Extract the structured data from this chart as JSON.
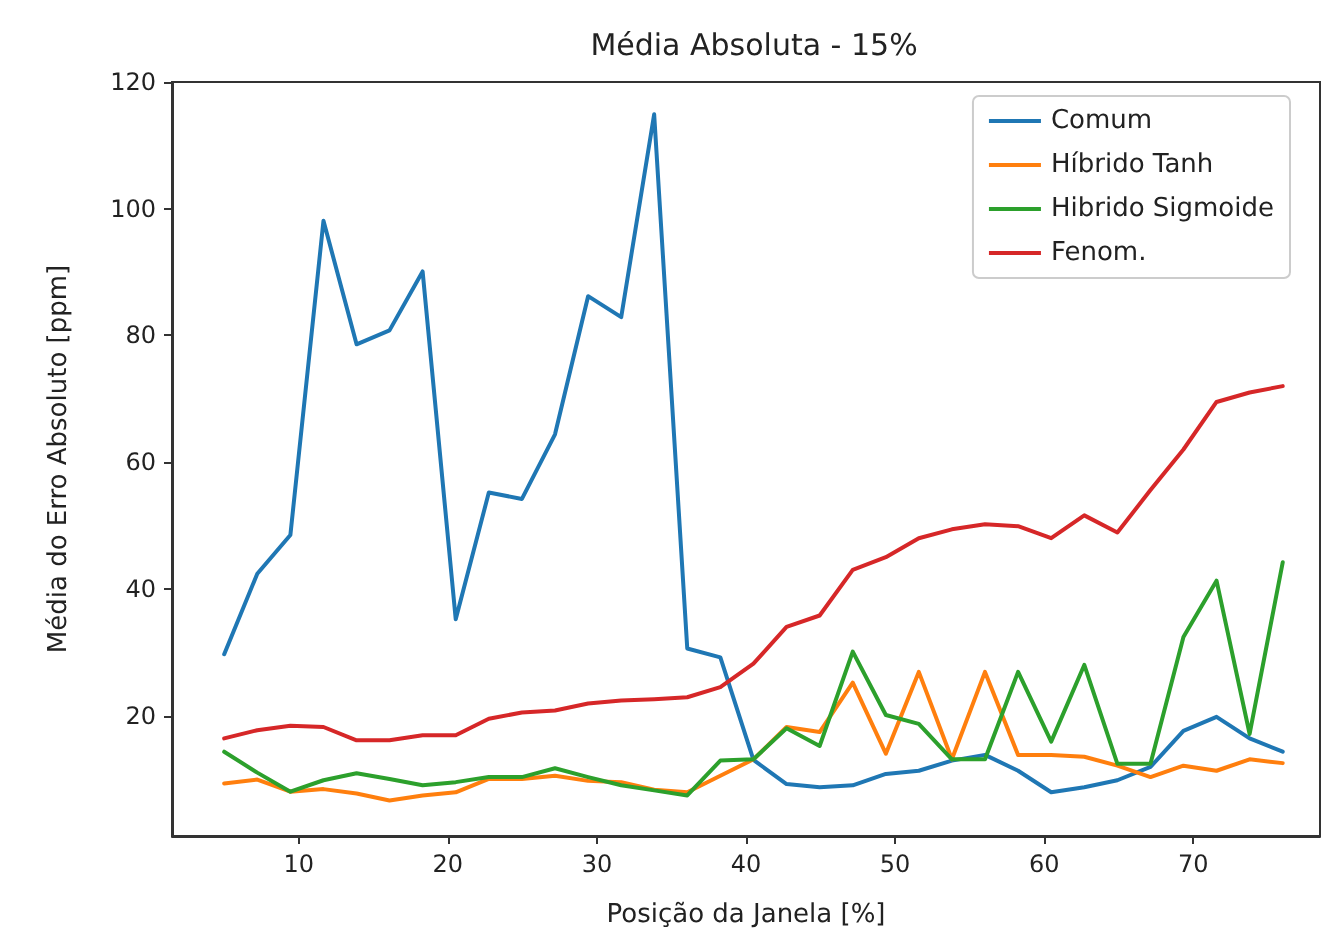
{
  "chart_data": {
    "type": "line",
    "title": "Média Absoluta - 15%",
    "xlabel": "Posição da Janela [%]",
    "ylabel": "Média do Erro Absoluto [ppm]",
    "x": [
      5,
      7.22,
      9.44,
      11.66,
      13.88,
      16.09,
      18.31,
      20.53,
      22.75,
      24.97,
      27.19,
      29.41,
      31.63,
      33.84,
      36.06,
      38.28,
      40.5,
      42.72,
      44.94,
      47.16,
      49.38,
      51.59,
      53.81,
      56.03,
      58.25,
      60.47,
      62.69,
      64.91,
      67.13,
      69.34,
      71.56,
      73.78,
      76
    ],
    "xlim": [
      1.5,
      78.5
    ],
    "xticks": [
      10,
      20,
      30,
      40,
      50,
      60,
      70
    ],
    "ylim": [
      1,
      120
    ],
    "yticks": [
      20,
      40,
      60,
      80,
      100,
      120
    ],
    "legend": "top right",
    "grid": false,
    "line_style": "solid",
    "marker": "none",
    "series": [
      {
        "name": "Comum",
        "color": "#1f77b4",
        "values": [
          29.7,
          42.4,
          48.5,
          98.1,
          78.6,
          80.8,
          90.1,
          35.2,
          55.2,
          54.2,
          64.4,
          86.2,
          82.9,
          114.9,
          30.6,
          29.2,
          13,
          9.2,
          8.7,
          9.0,
          10.8,
          11.3,
          12.9,
          13.8,
          11.3,
          7.9,
          8.7,
          9.8,
          11.9,
          17.6,
          19.8,
          16.4,
          14.3
        ]
      },
      {
        "name": "Híbrido Tanh",
        "color": "#ff7f0e",
        "values": [
          9.3,
          9.9,
          8.0,
          8.4,
          7.7,
          6.6,
          7.4,
          7.9,
          10.0,
          10.0,
          10.5,
          9.7,
          9.5,
          8.3,
          7.9,
          10.5,
          13.1,
          18.2,
          17.4,
          25.2,
          14.0,
          26.9,
          13.1,
          26.9,
          13.8,
          13.8,
          13.5,
          12.1,
          10.3,
          12.1,
          11.3,
          13.1,
          12.5
        ]
      },
      {
        "name": "Hibrido Sigmoide",
        "color": "#2ca02c",
        "values": [
          14.3,
          11.0,
          8.0,
          9.8,
          10.9,
          10.0,
          9.0,
          9.5,
          10.3,
          10.3,
          11.7,
          10.3,
          9.0,
          8.2,
          7.4,
          12.9,
          13.1,
          18.0,
          15.2,
          30.1,
          20.1,
          18.7,
          13.1,
          13.1,
          26.9,
          15.9,
          28.0,
          12.4,
          12.4,
          32.4,
          41.3,
          17.1,
          44.2
        ]
      },
      {
        "name": "Fenom.",
        "color": "#d62728",
        "values": [
          16.4,
          17.7,
          18.4,
          18.2,
          16.1,
          16.1,
          16.9,
          16.9,
          19.5,
          20.5,
          20.8,
          21.9,
          22.4,
          22.6,
          22.9,
          24.5,
          28.2,
          34.0,
          35.8,
          43.0,
          45.0,
          48.0,
          49.4,
          50.2,
          49.9,
          48.0,
          51.6,
          48.9,
          55.6,
          62.0,
          69.5,
          71.0,
          72.0
        ]
      }
    ]
  }
}
